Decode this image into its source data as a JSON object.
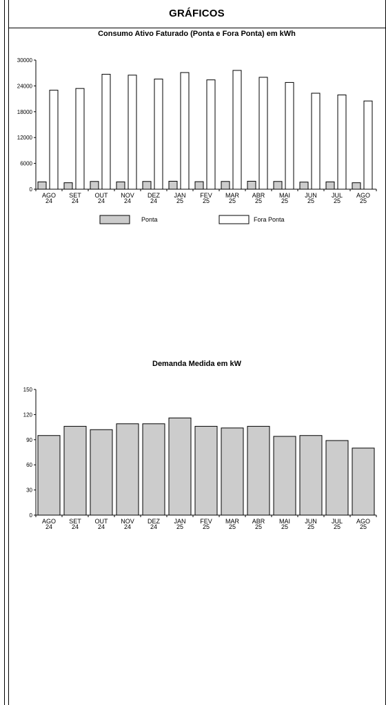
{
  "header": {
    "title": "GRÁFICOS"
  },
  "charts": [
    {
      "title": "Consumo Ativo Faturado (Ponta e Fora Ponta) em kWh",
      "type": "bar",
      "ylim": [
        0,
        30000
      ],
      "yticks": [
        "0",
        "6000",
        "12000",
        "18000",
        "24000",
        "30000"
      ],
      "categories": [
        [
          "AGO",
          "24"
        ],
        [
          "SET",
          "24"
        ],
        [
          "OUT",
          "24"
        ],
        [
          "NOV",
          "24"
        ],
        [
          "DEZ",
          "24"
        ],
        [
          "JAN",
          "25"
        ],
        [
          "FEV",
          "25"
        ],
        [
          "MAR",
          "25"
        ],
        [
          "ABR",
          "25"
        ],
        [
          "MAI",
          "25"
        ],
        [
          "JUN",
          "25"
        ],
        [
          "JUL",
          "25"
        ],
        [
          "AGO",
          "25"
        ]
      ],
      "series": [
        {
          "name": "Ponta",
          "color": "#cccccc",
          "values": [
            1700,
            1500,
            1800,
            1700,
            1800,
            1850,
            1750,
            1800,
            1850,
            1800,
            1650,
            1700,
            1500
          ]
        },
        {
          "name": "Fora Ponta",
          "color": "#ffffff",
          "values": [
            23000,
            23400,
            26700,
            26500,
            25600,
            27100,
            25400,
            27600,
            26000,
            24800,
            22300,
            21900,
            20500
          ]
        }
      ],
      "legend": "bottom"
    },
    {
      "title": "Demanda Medida em kW",
      "type": "bar",
      "ylim": [
        0,
        150
      ],
      "yticks": [
        "0",
        "30",
        "60",
        "90",
        "120",
        "150"
      ],
      "categories": [
        [
          "AGO",
          "24"
        ],
        [
          "SET",
          "24"
        ],
        [
          "OUT",
          "24"
        ],
        [
          "NOV",
          "24"
        ],
        [
          "DEZ",
          "24"
        ],
        [
          "JAN",
          "25"
        ],
        [
          "FEV",
          "25"
        ],
        [
          "MAR",
          "25"
        ],
        [
          "ABR",
          "25"
        ],
        [
          "MAI",
          "25"
        ],
        [
          "JUN",
          "25"
        ],
        [
          "JUL",
          "25"
        ],
        [
          "AGO",
          "25"
        ]
      ],
      "series": [
        {
          "color": "#cccccc",
          "values": [
            95,
            106,
            102,
            109,
            109,
            116,
            106,
            104,
            106,
            94,
            95,
            89,
            80
          ]
        }
      ]
    }
  ],
  "chart_data": [
    {
      "type": "bar",
      "title": "Consumo Ativo Faturado (Ponta e Fora Ponta) em kWh",
      "categories": [
        "AGO 24",
        "SET 24",
        "OUT 24",
        "NOV 24",
        "DEZ 24",
        "JAN 25",
        "FEV 25",
        "MAR 25",
        "ABR 25",
        "MAI 25",
        "JUN 25",
        "JUL 25",
        "AGO 25"
      ],
      "series": [
        {
          "name": "Ponta",
          "values": [
            1700,
            1500,
            1800,
            1700,
            1800,
            1850,
            1750,
            1800,
            1850,
            1800,
            1650,
            1700,
            1500
          ]
        },
        {
          "name": "Fora Ponta",
          "values": [
            23000,
            23400,
            26700,
            26500,
            25600,
            27100,
            25400,
            27600,
            26000,
            24800,
            22300,
            21900,
            20500
          ]
        }
      ],
      "ylim": [
        0,
        30000
      ],
      "legend": "bottom",
      "grid": false
    },
    {
      "type": "bar",
      "title": "Demanda Medida em kW",
      "categories": [
        "AGO 24",
        "SET 24",
        "OUT 24",
        "NOV 24",
        "DEZ 24",
        "JAN 25",
        "FEV 25",
        "MAR 25",
        "ABR 25",
        "MAI 25",
        "JUN 25",
        "JUL 25",
        "AGO 25"
      ],
      "series": [
        {
          "values": [
            95,
            106,
            102,
            109,
            109,
            116,
            106,
            104,
            106,
            94,
            95,
            89,
            80
          ]
        }
      ],
      "ylim": [
        0,
        150
      ],
      "grid": false
    }
  ]
}
